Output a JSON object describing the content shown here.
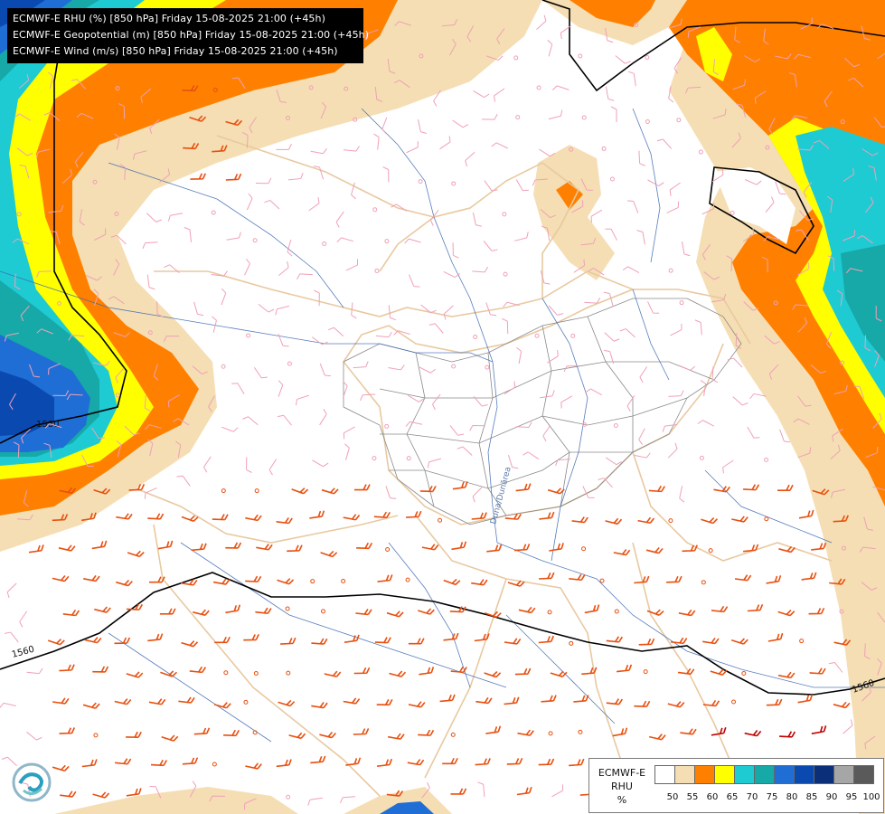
{
  "header": {
    "lines": [
      "ECMWF-E RHU (%) [850 hPa] Friday 15-08-2025 21:00 (+45h)",
      "ECMWF-E Geopotential (m) [850 hPa] Friday 15-08-2025 21:00 (+45h)",
      "ECMWF-E Wind (m/s) [850 hPa] Friday 15-08-2025 21:00 (+45h)"
    ]
  },
  "contours": {
    "north_label": "1580",
    "south_label_west": "1560",
    "south_label_east": "1560"
  },
  "river_label": "Duna/Dunărea",
  "legend": {
    "title_lines": [
      "ECMWF-E",
      "RHU",
      "%"
    ],
    "colors": [
      "#ffffff",
      "#f5deb3",
      "#ff8000",
      "#ffff00",
      "#1ecbd3",
      "#17a8a8",
      "#1f6ed6",
      "#0a4ab0",
      "#0b2f78",
      "#a6a6a6",
      "#5a5a5a"
    ],
    "ticks": [
      "50",
      "55",
      "60",
      "65",
      "70",
      "75",
      "80",
      "85",
      "90",
      "95",
      "100"
    ]
  },
  "colors": {
    "wheat": "#f5deb3",
    "orange": "#ff8000",
    "yellow": "#ffff00",
    "cyan": "#1ecbd3",
    "teal": "#17a8a8",
    "blue": "#1f6ed6",
    "deep_blue": "#0a4ab0",
    "border_line": "#e8c9a0",
    "river_line": "#3a66b0",
    "wind_light": "#f0a0b8",
    "wind_strong": "#e85010",
    "wind_max": "#c00000"
  }
}
